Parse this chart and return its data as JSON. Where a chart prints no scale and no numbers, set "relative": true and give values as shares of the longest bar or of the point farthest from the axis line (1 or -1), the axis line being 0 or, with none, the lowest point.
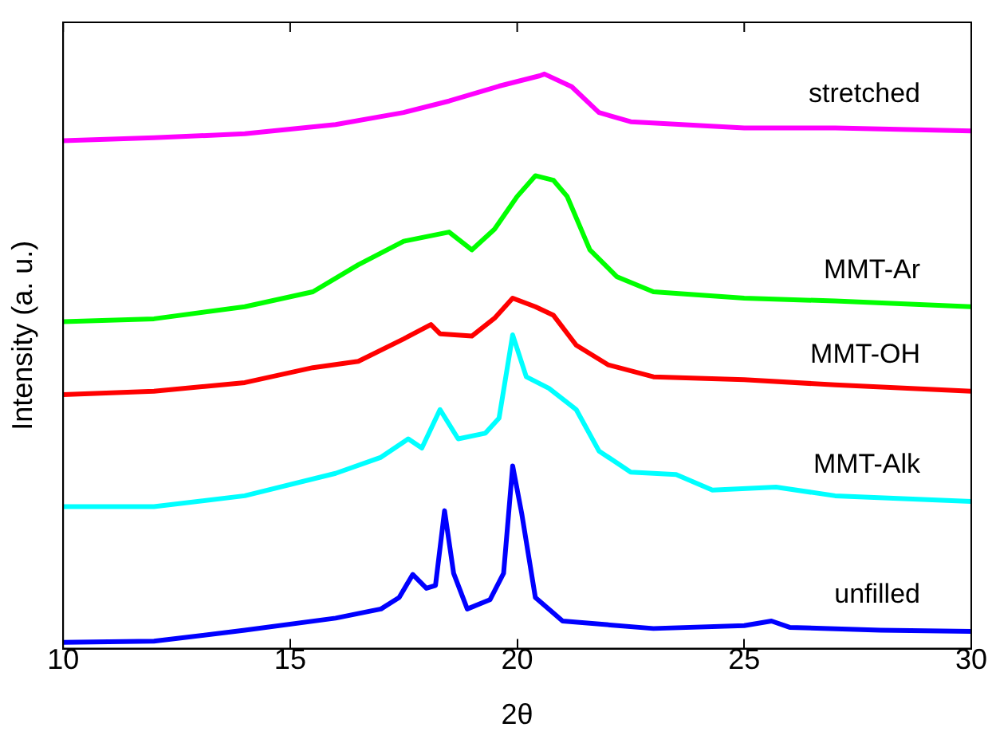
{
  "chart_data": {
    "type": "line",
    "xlabel": "2θ",
    "ylabel": "Intensity (a. u.)",
    "relative": true,
    "xlim": [
      10,
      30
    ],
    "xticks": [
      10,
      15,
      20,
      25,
      30
    ],
    "grid": false,
    "legend": false,
    "marker": "none",
    "line_style": "solid",
    "series": [
      {
        "name": "unfilled",
        "color": "#0000ff",
        "x": [
          10,
          12,
          14,
          16,
          17,
          17.4,
          17.7,
          18,
          18.2,
          18.4,
          18.6,
          18.9,
          19.4,
          19.7,
          19.9,
          20.1,
          20.4,
          21,
          23,
          25,
          25.6,
          26,
          28,
          30
        ],
        "values": [
          0.011,
          0.013,
          0.032,
          0.053,
          0.069,
          0.089,
          0.129,
          0.105,
          0.11,
          0.24,
          0.131,
          0.069,
          0.085,
          0.131,
          0.318,
          0.235,
          0.089,
          0.048,
          0.035,
          0.04,
          0.048,
          0.037,
          0.032,
          0.03
        ]
      },
      {
        "name": "MMT-Alk",
        "color": "#00ffff",
        "x": [
          10,
          12,
          14,
          16,
          17,
          17.6,
          17.9,
          18.3,
          18.7,
          19.3,
          19.6,
          19.9,
          20.2,
          20.7,
          21.3,
          21.8,
          22.5,
          23.5,
          24.3,
          25.7,
          27,
          30
        ],
        "values": [
          0.247,
          0.247,
          0.266,
          0.305,
          0.333,
          0.365,
          0.349,
          0.416,
          0.365,
          0.375,
          0.401,
          0.546,
          0.473,
          0.453,
          0.416,
          0.344,
          0.307,
          0.303,
          0.276,
          0.281,
          0.266,
          0.256
        ]
      },
      {
        "name": "MMT-OH",
        "color": "#ff0000",
        "x": [
          10,
          12,
          14,
          15.5,
          16.5,
          17.5,
          18.1,
          18.3,
          19,
          19.5,
          19.9,
          20.4,
          20.8,
          21.3,
          22,
          23,
          25,
          27,
          30
        ],
        "values": [
          0.442,
          0.448,
          0.463,
          0.489,
          0.5,
          0.539,
          0.564,
          0.548,
          0.544,
          0.575,
          0.61,
          0.595,
          0.58,
          0.528,
          0.494,
          0.473,
          0.468,
          0.459,
          0.448
        ]
      },
      {
        "name": "MMT-Ar",
        "color": "#00ff00",
        "x": [
          10,
          12,
          14,
          15.5,
          16.5,
          17.5,
          18.5,
          19,
          19.5,
          20,
          20.4,
          20.8,
          21.1,
          21.6,
          22.2,
          23,
          25,
          27,
          30
        ],
        "values": [
          0.569,
          0.574,
          0.595,
          0.621,
          0.668,
          0.709,
          0.725,
          0.694,
          0.73,
          0.787,
          0.823,
          0.815,
          0.787,
          0.694,
          0.647,
          0.621,
          0.61,
          0.605,
          0.595
        ]
      },
      {
        "name": "stretched",
        "color": "#ff00ff",
        "x": [
          10,
          12,
          14,
          16,
          17.5,
          18.5,
          19.6,
          20.5,
          20.6,
          21.2,
          21.8,
          22.5,
          25,
          27,
          30
        ],
        "values": [
          0.884,
          0.889,
          0.896,
          0.912,
          0.933,
          0.953,
          0.979,
          0.997,
          1,
          0.978,
          0.933,
          0.917,
          0.906,
          0.906,
          0.901
        ]
      }
    ]
  }
}
